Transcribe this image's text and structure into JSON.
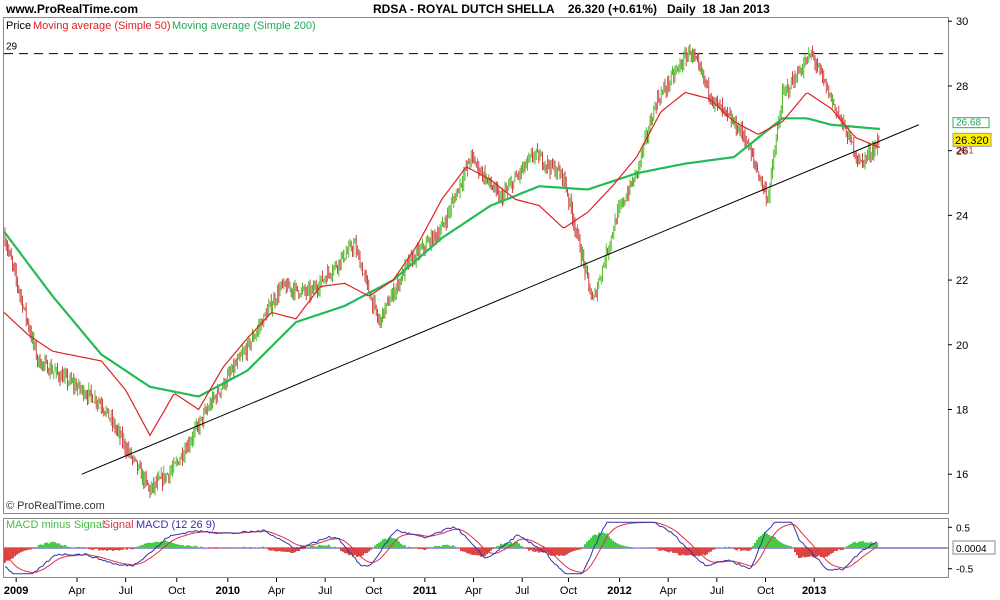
{
  "header": {
    "site": "www.ProRealTime.com",
    "symbol": "RDSA - ROYAL DUTCH SHELLA",
    "last": "26.320 (+0.61%)",
    "period": "Daily",
    "date": "18 Jan 2013"
  },
  "legend": {
    "price": "Price",
    "ma50": "Moving average (Simple 50)",
    "ma200": "Moving average (Simple 200)"
  },
  "macd_legend": {
    "diff": "MACD minus Signal",
    "signal": "Signal",
    "macd": "MACD (12 26 9)"
  },
  "copyright": "© ProRealTime.com",
  "colors": {
    "up": "#55bb33",
    "down": "#cc4444",
    "ma50": "#dd2222",
    "ma200": "#22bb55",
    "macd": "#3333aa",
    "signal": "#dd3344",
    "hist_pos": "#44cc44",
    "hist_neg": "#dd4444",
    "price_tag": "#ffee00"
  },
  "chart_data": {
    "type": "line",
    "title": "RDSA - ROYAL DUTCH SHELLA",
    "x_ticks": [
      "2009",
      "Apr",
      "Jul",
      "Oct",
      "2010",
      "Apr",
      "Jul",
      "Oct",
      "2011",
      "Apr",
      "Jul",
      "Oct",
      "2012",
      "Apr",
      "Jul",
      "Oct",
      "2013"
    ],
    "y_ticks": [
      16,
      18,
      20,
      22,
      24,
      26,
      28,
      30
    ],
    "ylim": [
      14.8,
      30.1
    ],
    "resistance_level": 29,
    "last_price": "26.320",
    "ma200_tag": "26.68",
    "ma50_tag": "26.1",
    "series": [
      {
        "name": "Price",
        "x": [
          0.0,
          0.7,
          2.0,
          3.0,
          3.5,
          4.3,
          5.0,
          5.7,
          6.3,
          7.2,
          7.7,
          8.3,
          9.0,
          9.6,
          10.2,
          10.9,
          11.5,
          12.1,
          12.6,
          13.0,
          13.4,
          14.1,
          14.6,
          15.2,
          15.7,
          16.0,
          16.6,
          17.0,
          17.6,
          18.0
        ],
        "values": [
          23.4,
          19.5,
          18.2,
          15.5,
          16.2,
          18.3,
          19.9,
          21.8,
          21.6,
          23.1,
          20.7,
          22.5,
          23.6,
          25.8,
          24.5,
          25.9,
          25.2,
          21.3,
          24.0,
          25.3,
          27.5,
          29.1,
          27.5,
          26.5,
          24.5,
          27.7,
          29.0,
          27.6,
          25.6,
          26.3
        ]
      },
      {
        "name": "Moving average (Simple 50)",
        "x": [
          0.0,
          0.5,
          1.0,
          2.0,
          2.5,
          3.0,
          3.5,
          4.0,
          4.5,
          5.0,
          5.5,
          6.0,
          6.5,
          7.0,
          7.5,
          8.0,
          8.5,
          9.0,
          9.5,
          10.0,
          10.5,
          11.0,
          11.5,
          12.0,
          12.5,
          13.0,
          13.5,
          14.0,
          14.5,
          15.0,
          15.5,
          16.0,
          16.5,
          17.0,
          17.5,
          18.0
        ],
        "values": [
          21.0,
          20.3,
          19.8,
          19.5,
          18.6,
          17.2,
          18.5,
          18.0,
          19.3,
          20.2,
          21.0,
          20.8,
          21.8,
          21.9,
          21.5,
          22.0,
          23.1,
          24.5,
          25.5,
          25.1,
          24.5,
          24.3,
          23.6,
          24.1,
          24.9,
          25.8,
          27.2,
          27.8,
          27.6,
          26.9,
          26.5,
          26.9,
          27.8,
          27.3,
          26.4,
          26.1
        ]
      },
      {
        "name": "Moving average (Simple 200)",
        "x": [
          0.0,
          1.0,
          2.0,
          3.0,
          4.0,
          5.0,
          6.0,
          7.0,
          8.0,
          9.0,
          10.0,
          11.0,
          12.0,
          13.0,
          14.0,
          15.0,
          16.0,
          16.5,
          17.0,
          18.0
        ],
        "values": [
          23.5,
          21.5,
          19.7,
          18.7,
          18.4,
          19.2,
          20.7,
          21.2,
          22.0,
          23.3,
          24.3,
          24.9,
          24.8,
          25.3,
          25.6,
          25.8,
          27.0,
          27.0,
          26.8,
          26.67
        ]
      }
    ],
    "trendline": {
      "x": [
        1.6,
        18.8
      ],
      "values": [
        16.0,
        26.8
      ]
    },
    "macd": {
      "ylim": [
        -0.7,
        0.7
      ],
      "y_ticks": [
        0.5,
        -0.5
      ],
      "last_value": "0.0004"
    }
  }
}
